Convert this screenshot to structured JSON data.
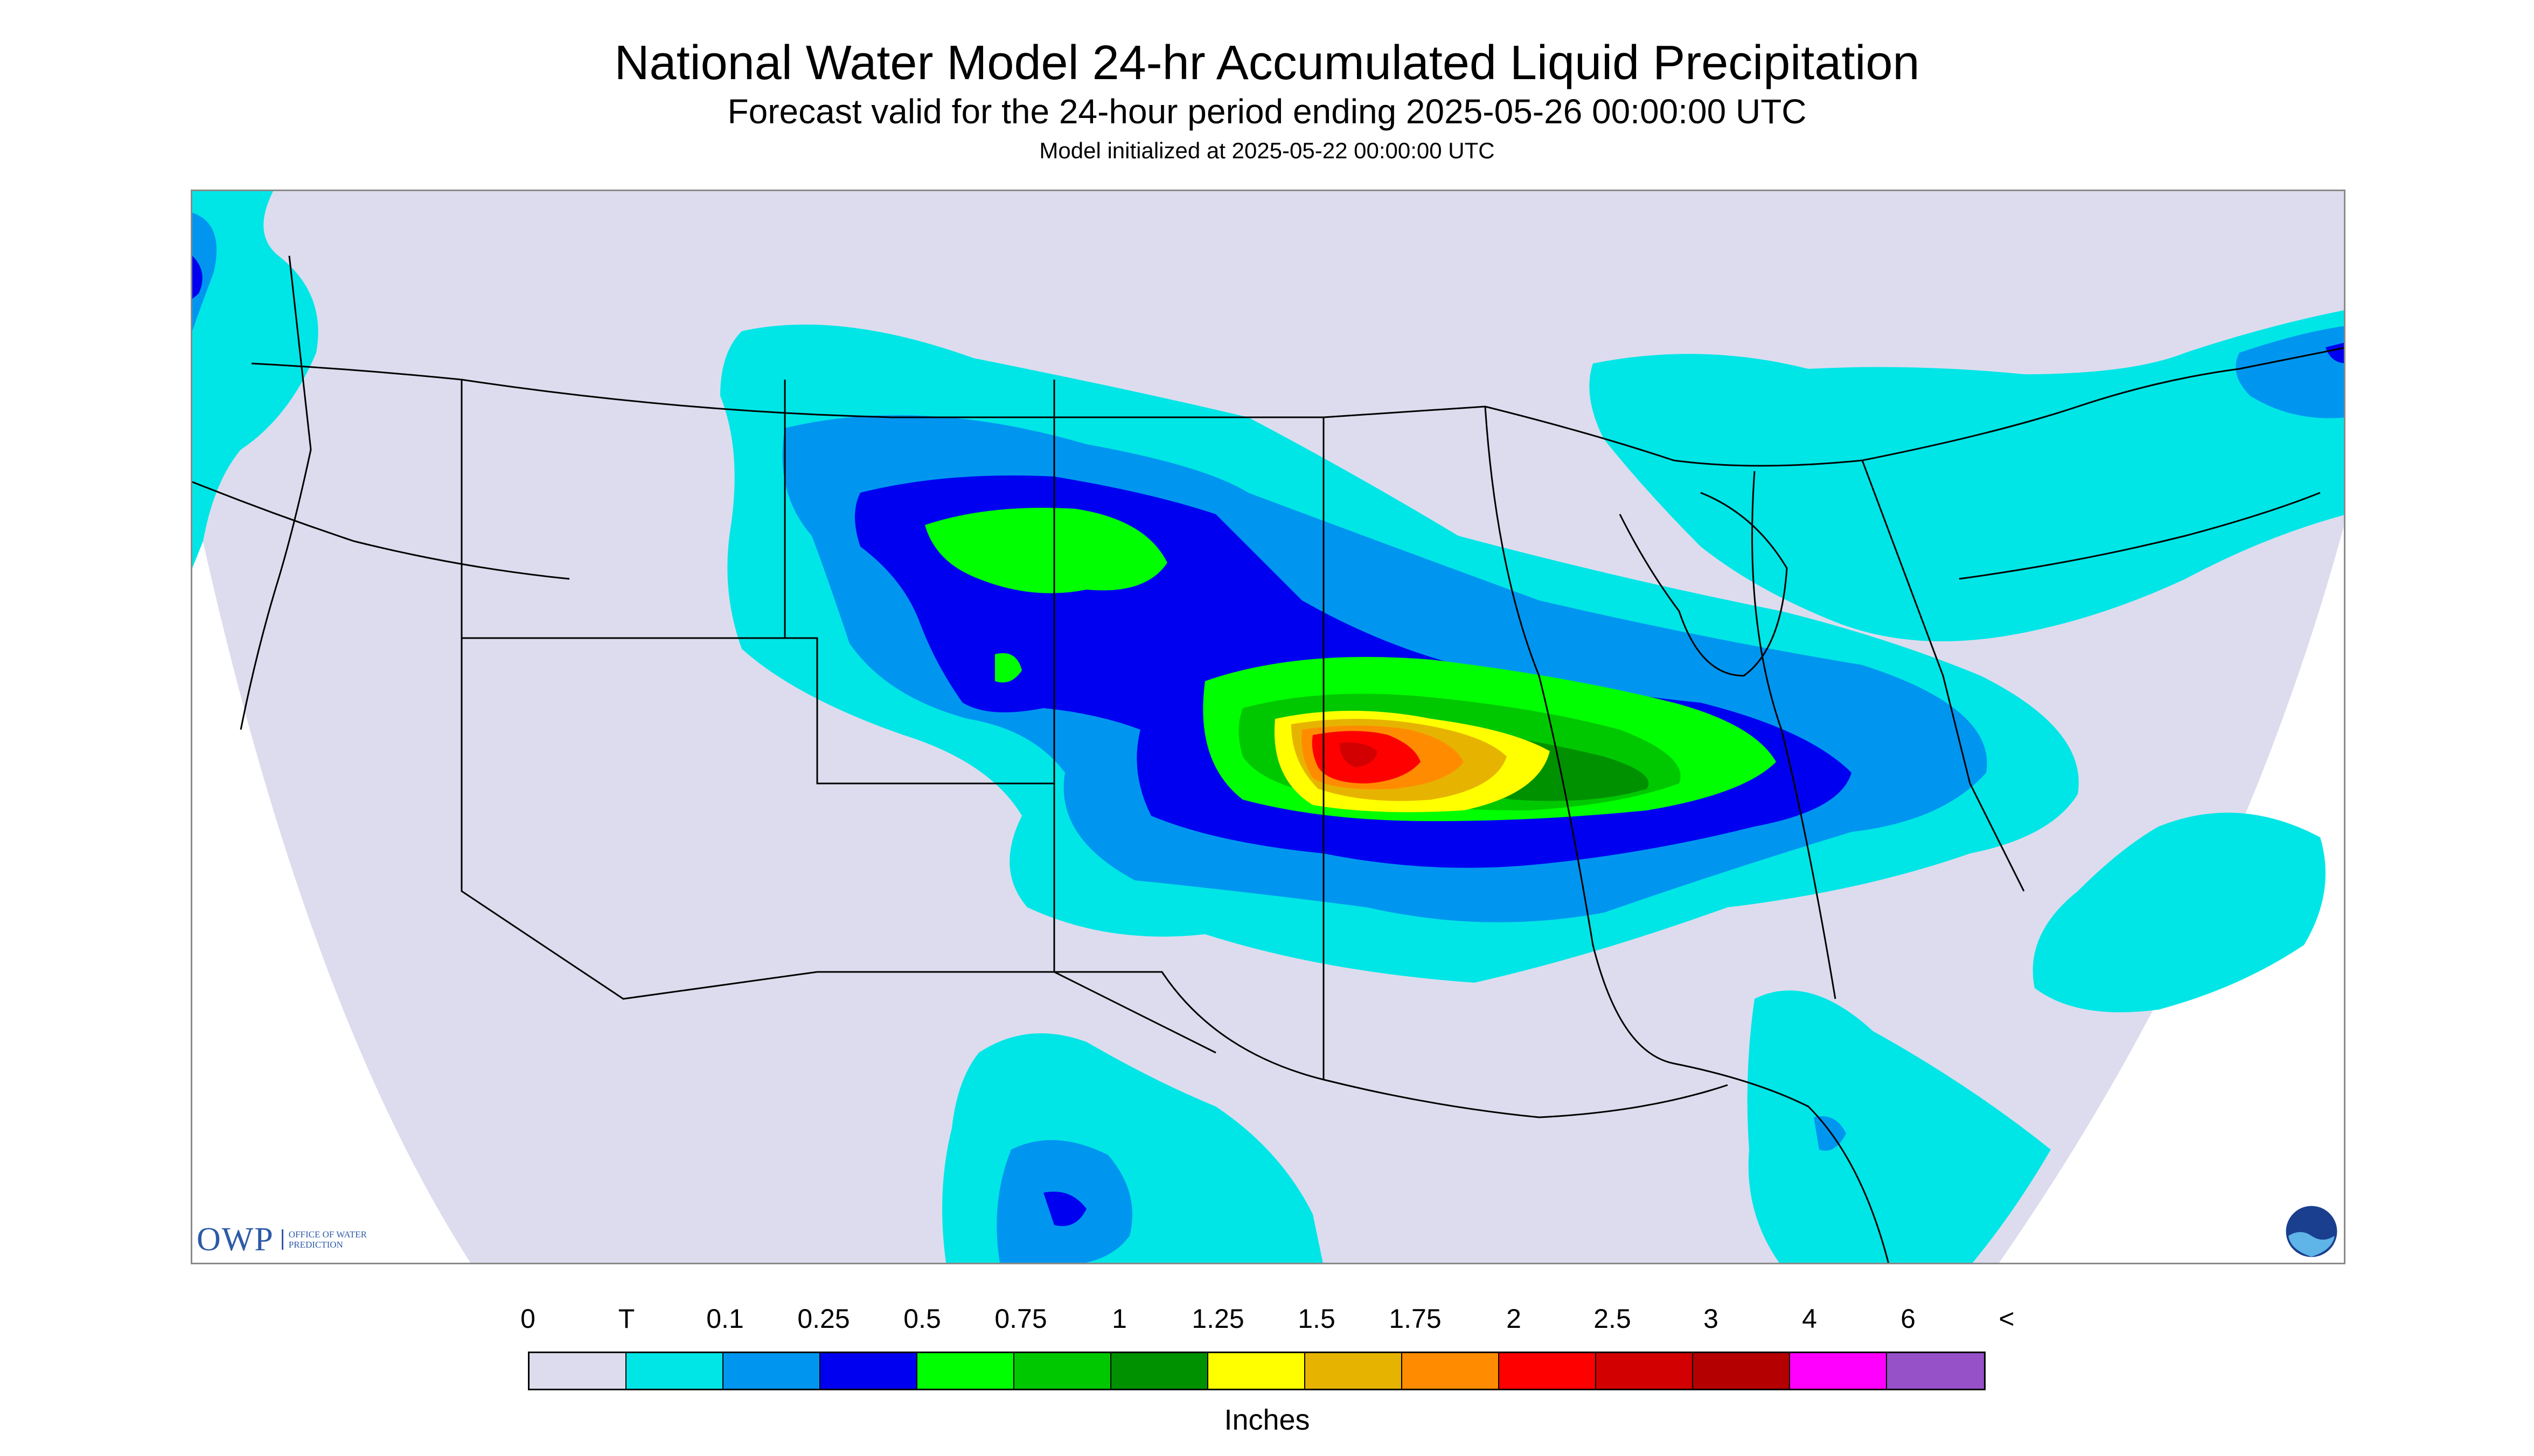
{
  "title": "National Water Model 24-hr Accumulated Liquid Precipitation",
  "subtitle": "Forecast valid for the 24-hour period ending 2025-05-26 00:00:00 UTC",
  "init_text": "Model initialized at 2025-05-22 00:00:00 UTC",
  "logos": {
    "owp_mark": "OWP",
    "owp_name": "OFFICE OF WATER PREDICTION",
    "noaa_mark": "NOAA"
  },
  "legend": {
    "unit": "Inches",
    "tick_labels": [
      "0",
      "T",
      "0.1",
      "0.25",
      "0.5",
      "0.75",
      "1",
      "1.25",
      "1.5",
      "1.75",
      "2",
      "2.5",
      "3",
      "4",
      "6",
      "<"
    ],
    "colors": [
      "#dcdcee",
      "#00e6e6",
      "#0096f0",
      "#0000f0",
      "#00ff00",
      "#00c800",
      "#009100",
      "#ffff00",
      "#e6b400",
      "#ff8c00",
      "#ff0000",
      "#d20000",
      "#b40000",
      "#ff00ff",
      "#9650c8"
    ]
  },
  "map": {
    "region": "CONUS",
    "background_color": "#dcdcee",
    "offgrid_color": "#ffffff",
    "border_color": "#000000",
    "features": [
      {
        "name": "Pacific Northwest band",
        "category": "T"
      },
      {
        "name": "Northern Plains system",
        "category": "0.75"
      },
      {
        "name": "Central Plains / Midwest core",
        "category": "2.5"
      },
      {
        "name": "Northeast / New England band",
        "category": "0.25"
      },
      {
        "name": "Atlantic offshore band",
        "category": "T"
      },
      {
        "name": "Southwest Mexico band",
        "category": "0.25"
      },
      {
        "name": "Florida / Gulf band",
        "category": "T"
      }
    ]
  }
}
